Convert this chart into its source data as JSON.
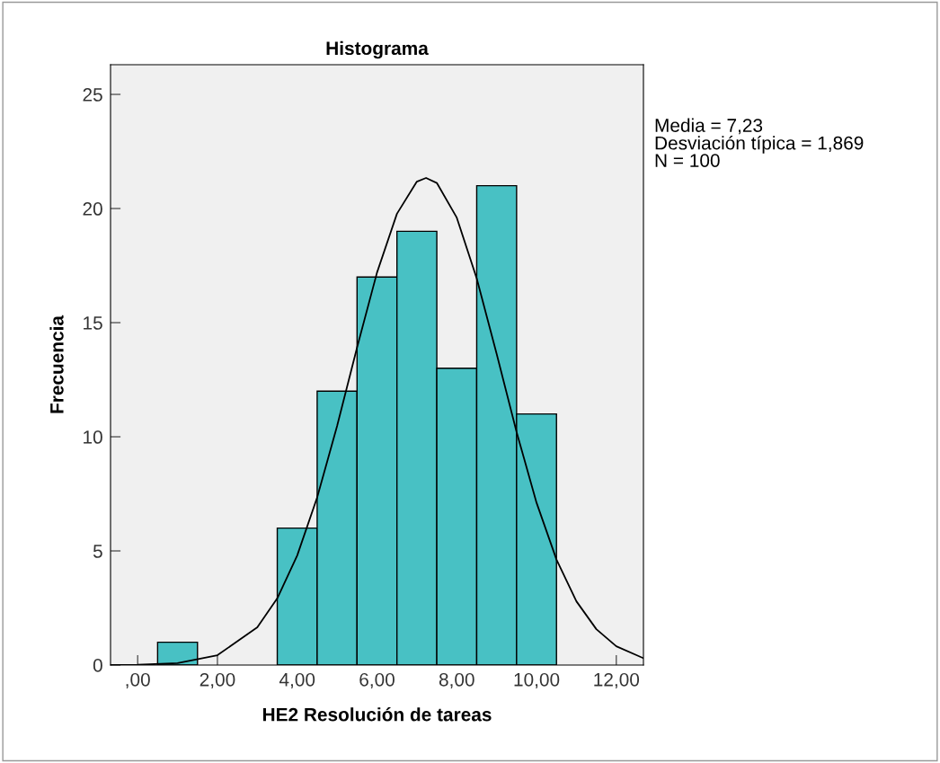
{
  "chart_data": {
    "type": "histogram",
    "title": "Histograma",
    "xlabel": "HE2 Resolución de tareas",
    "ylabel": "Frecuencia",
    "bins": [
      0.5,
      1.5,
      2.5,
      3.5,
      4.5,
      5.5,
      6.5,
      7.5,
      8.5,
      9.5,
      10.5
    ],
    "values": [
      1,
      0,
      0,
      6,
      12,
      17,
      19,
      13,
      21,
      11
    ],
    "color": "#48c1c4",
    "series": [
      {
        "type": "line",
        "color": "#000000",
        "x": [
          -0.68,
          0,
          1,
          2,
          3,
          3.5,
          4,
          4.5,
          5,
          5.5,
          6,
          6.5,
          7,
          7.23,
          7.5,
          8,
          8.5,
          9,
          9.5,
          10,
          10.5,
          11,
          11.5,
          12,
          12.68
        ],
        "values": [
          0.0,
          0.01,
          0.08,
          0.43,
          1.65,
          2.92,
          4.8,
          7.34,
          10.47,
          13.91,
          17.19,
          19.77,
          21.18,
          21.34,
          21.12,
          19.6,
          16.94,
          13.63,
          10.21,
          7.11,
          4.62,
          2.79,
          1.57,
          0.82,
          0.3
        ]
      }
    ],
    "xlim": [
      -0.68,
      12.68
    ],
    "ylim": [
      0,
      26.3
    ],
    "xticks": [
      {
        "value": 0,
        "label": ",00"
      },
      {
        "value": 2,
        "label": "2,00"
      },
      {
        "value": 4,
        "label": "4,00"
      },
      {
        "value": 6,
        "label": "6,00"
      },
      {
        "value": 8,
        "label": "8,00"
      },
      {
        "value": 10,
        "label": "10,00"
      },
      {
        "value": 12,
        "label": "12,00"
      }
    ],
    "yticks": [
      0,
      5,
      10,
      15,
      20,
      25
    ],
    "grid": false,
    "legend": false,
    "annotations": [
      "Media = 7,23\nDesviación típica = 1,869\nN = 100"
    ]
  }
}
